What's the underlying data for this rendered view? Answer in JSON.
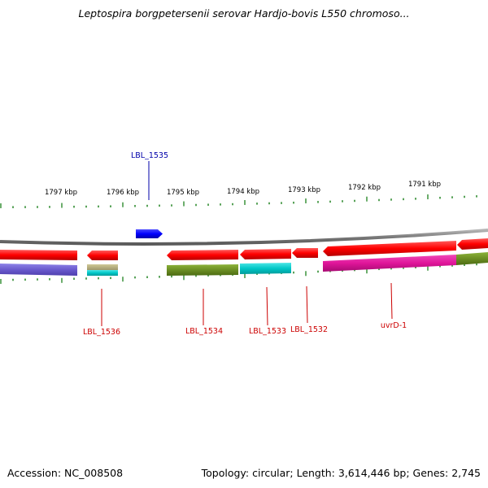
{
  "title": "Leptospira borgpetersenii serovar Hardjo-bovis L550 chromoso...",
  "footer": {
    "accession": "Accession: NC_008508",
    "summary": "Topology: circular; Length: 3,614,446 bp; Genes: 2,745"
  },
  "colors": {
    "backbone": "#8a8a8a",
    "tick": "#2e8b2e",
    "forward_label": "#0000aa",
    "reverse_label": "#cc0000",
    "cds_reverse": "#ff0000",
    "cds_forward": "#0000ff",
    "cog_purple": "#6a5acd",
    "cog_khaki": "#b5ad7a",
    "cog_cyan": "#00c8c8",
    "cog_olive": "#6b8e23",
    "cog_magenta": "#e0159a"
  },
  "ticks": [
    "1797 kbp",
    "1796 kbp",
    "1795 kbp",
    "1794 kbp",
    "1793 kbp",
    "1792 kbp",
    "1791 kbp"
  ],
  "genes": [
    {
      "label": "LBL_1535",
      "strand": "forward"
    },
    {
      "label": "LBL_1536",
      "strand": "reverse"
    },
    {
      "label": "LBL_1534",
      "strand": "reverse"
    },
    {
      "label": "LBL_1533",
      "strand": "reverse"
    },
    {
      "label": "LBL_1532",
      "strand": "reverse"
    },
    {
      "label": "uvrD-1",
      "strand": "reverse"
    }
  ]
}
